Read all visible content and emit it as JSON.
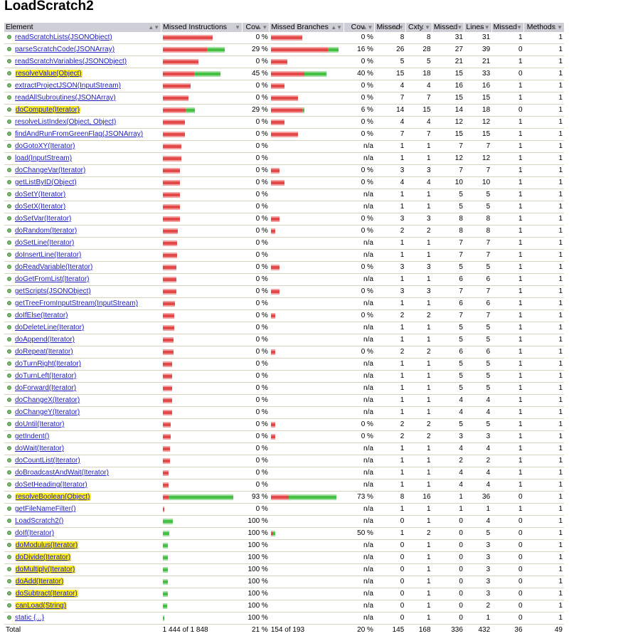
{
  "title": "LoadScratch2",
  "columns": [
    "Element",
    "Missed Instructions",
    "Cov.",
    "Missed Branches",
    "Cov.",
    "Missed",
    "Cxty",
    "Missed",
    "Lines",
    "Missed",
    "Methods"
  ],
  "colors": {
    "missed_bar": "#e44949",
    "covered_bar": "#45c045",
    "highlight": "#ffee22",
    "link": "#2020c0",
    "header_bg": "#ceced6"
  },
  "rows": [
    {
      "name": "readScratchLists(JSONObject)",
      "hl": false,
      "ir": 70,
      "ig": 0,
      "icov": "0 %",
      "br": 44,
      "bg": 0,
      "bcov": "0 %",
      "cxm": "8",
      "cx": "8",
      "lm": "31",
      "ln": "31",
      "mm": "1",
      "mt": "1"
    },
    {
      "name": "parseScratchCode(JSONArray)",
      "hl": false,
      "ir": 62,
      "ig": 25,
      "icov": "29 %",
      "br": 80,
      "bg": 15,
      "bcov": "16 %",
      "cxm": "26",
      "cx": "28",
      "lm": "27",
      "ln": "39",
      "mm": "0",
      "mt": "1"
    },
    {
      "name": "readScratchVariables(JSONObject)",
      "hl": false,
      "ir": 50,
      "ig": 0,
      "icov": "0 %",
      "br": 23,
      "bg": 0,
      "bcov": "0 %",
      "cxm": "5",
      "cx": "5",
      "lm": "21",
      "ln": "21",
      "mm": "1",
      "mt": "1"
    },
    {
      "name": "resolveValue(Object)",
      "hl": true,
      "ir": 44,
      "ig": 37,
      "icov": "45 %",
      "br": 47,
      "bg": 31,
      "bcov": "40 %",
      "cxm": "15",
      "cx": "18",
      "lm": "15",
      "ln": "33",
      "mm": "0",
      "mt": "1"
    },
    {
      "name": "extractProjectJSON(InputStream)",
      "hl": false,
      "ir": 39,
      "ig": 0,
      "icov": "0 %",
      "br": 19,
      "bg": 0,
      "bcov": "0 %",
      "cxm": "4",
      "cx": "4",
      "lm": "16",
      "ln": "16",
      "mm": "1",
      "mt": "1"
    },
    {
      "name": "readAllSubroutines(JSONArray)",
      "hl": false,
      "ir": 36,
      "ig": 0,
      "icov": "0 %",
      "br": 38,
      "bg": 0,
      "bcov": "0 %",
      "cxm": "7",
      "cx": "7",
      "lm": "15",
      "ln": "15",
      "mm": "1",
      "mt": "1"
    },
    {
      "name": "doCompute(Iterator)",
      "hl": true,
      "ir": 32,
      "ig": 13,
      "icov": "29 %",
      "br": 44,
      "bg": 3,
      "bcov": "6 %",
      "cxm": "14",
      "cx": "15",
      "lm": "14",
      "ln": "18",
      "mm": "0",
      "mt": "1"
    },
    {
      "name": "resolveListIndex(Object, Object)",
      "hl": false,
      "ir": 31,
      "ig": 0,
      "icov": "0 %",
      "br": 19,
      "bg": 0,
      "bcov": "0 %",
      "cxm": "4",
      "cx": "4",
      "lm": "12",
      "ln": "12",
      "mm": "1",
      "mt": "1"
    },
    {
      "name": "findAndRunFromGreenFlag(JSONArray)",
      "hl": false,
      "ir": 31,
      "ig": 0,
      "icov": "0 %",
      "br": 38,
      "bg": 0,
      "bcov": "0 %",
      "cxm": "7",
      "cx": "7",
      "lm": "15",
      "ln": "15",
      "mm": "1",
      "mt": "1"
    },
    {
      "name": "doGotoXY(Iterator)",
      "hl": false,
      "ir": 26,
      "ig": 0,
      "icov": "0 %",
      "br": 0,
      "bg": 0,
      "bcov": "n/a",
      "cxm": "1",
      "cx": "1",
      "lm": "7",
      "ln": "7",
      "mm": "1",
      "mt": "1"
    },
    {
      "name": "load(InputStream)",
      "hl": false,
      "ir": 26,
      "ig": 0,
      "icov": "0 %",
      "br": 0,
      "bg": 0,
      "bcov": "n/a",
      "cxm": "1",
      "cx": "1",
      "lm": "12",
      "ln": "12",
      "mm": "1",
      "mt": "1"
    },
    {
      "name": "doChangeVar(Iterator)",
      "hl": false,
      "ir": 24,
      "ig": 0,
      "icov": "0 %",
      "br": 12,
      "bg": 0,
      "bcov": "0 %",
      "cxm": "3",
      "cx": "3",
      "lm": "7",
      "ln": "7",
      "mm": "1",
      "mt": "1"
    },
    {
      "name": "getListByID(Object)",
      "hl": false,
      "ir": 24,
      "ig": 0,
      "icov": "0 %",
      "br": 19,
      "bg": 0,
      "bcov": "0 %",
      "cxm": "4",
      "cx": "4",
      "lm": "10",
      "ln": "10",
      "mm": "1",
      "mt": "1"
    },
    {
      "name": "doSetY(Iterator)",
      "hl": false,
      "ir": 24,
      "ig": 0,
      "icov": "0 %",
      "br": 0,
      "bg": 0,
      "bcov": "n/a",
      "cxm": "1",
      "cx": "1",
      "lm": "5",
      "ln": "5",
      "mm": "1",
      "mt": "1"
    },
    {
      "name": "doSetX(Iterator)",
      "hl": false,
      "ir": 24,
      "ig": 0,
      "icov": "0 %",
      "br": 0,
      "bg": 0,
      "bcov": "n/a",
      "cxm": "1",
      "cx": "1",
      "lm": "5",
      "ln": "5",
      "mm": "1",
      "mt": "1"
    },
    {
      "name": "doSetVar(Iterator)",
      "hl": false,
      "ir": 24,
      "ig": 0,
      "icov": "0 %",
      "br": 12,
      "bg": 0,
      "bcov": "0 %",
      "cxm": "3",
      "cx": "3",
      "lm": "8",
      "ln": "8",
      "mm": "1",
      "mt": "1"
    },
    {
      "name": "doRandom(Iterator)",
      "hl": false,
      "ir": 21,
      "ig": 0,
      "icov": "0 %",
      "br": 6,
      "bg": 0,
      "bcov": "0 %",
      "cxm": "2",
      "cx": "2",
      "lm": "8",
      "ln": "8",
      "mm": "1",
      "mt": "1"
    },
    {
      "name": "doSetLine(Iterator)",
      "hl": false,
      "ir": 20,
      "ig": 0,
      "icov": "0 %",
      "br": 0,
      "bg": 0,
      "bcov": "n/a",
      "cxm": "1",
      "cx": "1",
      "lm": "7",
      "ln": "7",
      "mm": "1",
      "mt": "1"
    },
    {
      "name": "doInsertLine(Iterator)",
      "hl": false,
      "ir": 20,
      "ig": 0,
      "icov": "0 %",
      "br": 0,
      "bg": 0,
      "bcov": "n/a",
      "cxm": "1",
      "cx": "1",
      "lm": "7",
      "ln": "7",
      "mm": "1",
      "mt": "1"
    },
    {
      "name": "doReadVariable(Iterator)",
      "hl": false,
      "ir": 19,
      "ig": 0,
      "icov": "0 %",
      "br": 12,
      "bg": 0,
      "bcov": "0 %",
      "cxm": "3",
      "cx": "3",
      "lm": "5",
      "ln": "5",
      "mm": "1",
      "mt": "1"
    },
    {
      "name": "doGetFromList(Iterator)",
      "hl": false,
      "ir": 19,
      "ig": 0,
      "icov": "0 %",
      "br": 0,
      "bg": 0,
      "bcov": "n/a",
      "cxm": "1",
      "cx": "1",
      "lm": "6",
      "ln": "6",
      "mm": "1",
      "mt": "1"
    },
    {
      "name": "getScripts(JSONObject)",
      "hl": false,
      "ir": 19,
      "ig": 0,
      "icov": "0 %",
      "br": 12,
      "bg": 0,
      "bcov": "0 %",
      "cxm": "3",
      "cx": "3",
      "lm": "7",
      "ln": "7",
      "mm": "1",
      "mt": "1"
    },
    {
      "name": "getTreeFromInputStream(InputStream)",
      "hl": false,
      "ir": 17,
      "ig": 0,
      "icov": "0 %",
      "br": 0,
      "bg": 0,
      "bcov": "n/a",
      "cxm": "1",
      "cx": "1",
      "lm": "6",
      "ln": "6",
      "mm": "1",
      "mt": "1"
    },
    {
      "name": "doIfElse(Iterator)",
      "hl": false,
      "ir": 16,
      "ig": 0,
      "icov": "0 %",
      "br": 6,
      "bg": 0,
      "bcov": "0 %",
      "cxm": "2",
      "cx": "2",
      "lm": "7",
      "ln": "7",
      "mm": "1",
      "mt": "1"
    },
    {
      "name": "doDeleteLine(Iterator)",
      "hl": false,
      "ir": 16,
      "ig": 0,
      "icov": "0 %",
      "br": 0,
      "bg": 0,
      "bcov": "n/a",
      "cxm": "1",
      "cx": "1",
      "lm": "5",
      "ln": "5",
      "mm": "1",
      "mt": "1"
    },
    {
      "name": "doAppend(Iterator)",
      "hl": false,
      "ir": 15,
      "ig": 0,
      "icov": "0 %",
      "br": 0,
      "bg": 0,
      "bcov": "n/a",
      "cxm": "1",
      "cx": "1",
      "lm": "5",
      "ln": "5",
      "mm": "1",
      "mt": "1"
    },
    {
      "name": "doRepeat(Iterator)",
      "hl": false,
      "ir": 15,
      "ig": 0,
      "icov": "0 %",
      "br": 6,
      "bg": 0,
      "bcov": "0 %",
      "cxm": "2",
      "cx": "2",
      "lm": "6",
      "ln": "6",
      "mm": "1",
      "mt": "1"
    },
    {
      "name": "doTurnRight(Iterator)",
      "hl": false,
      "ir": 13,
      "ig": 0,
      "icov": "0 %",
      "br": 0,
      "bg": 0,
      "bcov": "n/a",
      "cxm": "1",
      "cx": "1",
      "lm": "5",
      "ln": "5",
      "mm": "1",
      "mt": "1"
    },
    {
      "name": "doTurnLeft(Iterator)",
      "hl": false,
      "ir": 13,
      "ig": 0,
      "icov": "0 %",
      "br": 0,
      "bg": 0,
      "bcov": "n/a",
      "cxm": "1",
      "cx": "1",
      "lm": "5",
      "ln": "5",
      "mm": "1",
      "mt": "1"
    },
    {
      "name": "doForward(Iterator)",
      "hl": false,
      "ir": 13,
      "ig": 0,
      "icov": "0 %",
      "br": 0,
      "bg": 0,
      "bcov": "n/a",
      "cxm": "1",
      "cx": "1",
      "lm": "5",
      "ln": "5",
      "mm": "1",
      "mt": "1"
    },
    {
      "name": "doChangeX(Iterator)",
      "hl": false,
      "ir": 13,
      "ig": 0,
      "icov": "0 %",
      "br": 0,
      "bg": 0,
      "bcov": "n/a",
      "cxm": "1",
      "cx": "1",
      "lm": "4",
      "ln": "4",
      "mm": "1",
      "mt": "1"
    },
    {
      "name": "doChangeY(Iterator)",
      "hl": false,
      "ir": 13,
      "ig": 0,
      "icov": "0 %",
      "br": 0,
      "bg": 0,
      "bcov": "n/a",
      "cxm": "1",
      "cx": "1",
      "lm": "4",
      "ln": "4",
      "mm": "1",
      "mt": "1"
    },
    {
      "name": "doUntil(Iterator)",
      "hl": false,
      "ir": 11,
      "ig": 0,
      "icov": "0 %",
      "br": 6,
      "bg": 0,
      "bcov": "0 %",
      "cxm": "2",
      "cx": "2",
      "lm": "5",
      "ln": "5",
      "mm": "1",
      "mt": "1"
    },
    {
      "name": "getIndent()",
      "hl": false,
      "ir": 11,
      "ig": 0,
      "icov": "0 %",
      "br": 6,
      "bg": 0,
      "bcov": "0 %",
      "cxm": "2",
      "cx": "2",
      "lm": "3",
      "ln": "3",
      "mm": "1",
      "mt": "1"
    },
    {
      "name": "doWait(Iterator)",
      "hl": false,
      "ir": 10,
      "ig": 0,
      "icov": "0 %",
      "br": 0,
      "bg": 0,
      "bcov": "n/a",
      "cxm": "1",
      "cx": "1",
      "lm": "4",
      "ln": "4",
      "mm": "1",
      "mt": "1"
    },
    {
      "name": "doCountList(Iterator)",
      "hl": false,
      "ir": 10,
      "ig": 0,
      "icov": "0 %",
      "br": 0,
      "bg": 0,
      "bcov": "n/a",
      "cxm": "1",
      "cx": "1",
      "lm": "2",
      "ln": "2",
      "mm": "1",
      "mt": "1"
    },
    {
      "name": "doBroadcastAndWait(Iterator)",
      "hl": false,
      "ir": 8,
      "ig": 0,
      "icov": "0 %",
      "br": 0,
      "bg": 0,
      "bcov": "n/a",
      "cxm": "1",
      "cx": "1",
      "lm": "4",
      "ln": "4",
      "mm": "1",
      "mt": "1"
    },
    {
      "name": "doSetHeading(Iterator)",
      "hl": false,
      "ir": 8,
      "ig": 0,
      "icov": "0 %",
      "br": 0,
      "bg": 0,
      "bcov": "n/a",
      "cxm": "1",
      "cx": "1",
      "lm": "4",
      "ln": "4",
      "mm": "1",
      "mt": "1"
    },
    {
      "name": "resolveBoolean(Object)",
      "hl": true,
      "ir": 8,
      "ig": 91,
      "icov": "93 %",
      "br": 25,
      "bg": 67,
      "bcov": "73 %",
      "cxm": "8",
      "cx": "16",
      "lm": "1",
      "ln": "36",
      "mm": "0",
      "mt": "1"
    },
    {
      "name": "getFileNameFilter()",
      "hl": false,
      "ir": 2,
      "ig": 0,
      "icov": "0 %",
      "br": 0,
      "bg": 0,
      "bcov": "n/a",
      "cxm": "1",
      "cx": "1",
      "lm": "1",
      "ln": "1",
      "mm": "1",
      "mt": "1"
    },
    {
      "name": "LoadScratch2()",
      "hl": false,
      "ir": 0,
      "ig": 14,
      "icov": "100 %",
      "br": 0,
      "bg": 0,
      "bcov": "n/a",
      "cxm": "0",
      "cx": "1",
      "lm": "0",
      "ln": "4",
      "mm": "0",
      "mt": "1"
    },
    {
      "name": "doIf(Iterator)",
      "hl": false,
      "ir": 0,
      "ig": 9,
      "icov": "100 %",
      "br": 3,
      "bg": 3,
      "bcov": "50 %",
      "cxm": "1",
      "cx": "2",
      "lm": "0",
      "ln": "5",
      "mm": "0",
      "mt": "1"
    },
    {
      "name": "doModulus(Iterator)",
      "hl": true,
      "ir": 0,
      "ig": 7,
      "icov": "100 %",
      "br": 0,
      "bg": 0,
      "bcov": "n/a",
      "cxm": "0",
      "cx": "1",
      "lm": "0",
      "ln": "3",
      "mm": "0",
      "mt": "1"
    },
    {
      "name": "doDivide(Iterator)",
      "hl": true,
      "ir": 0,
      "ig": 7,
      "icov": "100 %",
      "br": 0,
      "bg": 0,
      "bcov": "n/a",
      "cxm": "0",
      "cx": "1",
      "lm": "0",
      "ln": "3",
      "mm": "0",
      "mt": "1"
    },
    {
      "name": "doMultiply(Iterator)",
      "hl": true,
      "ir": 0,
      "ig": 7,
      "icov": "100 %",
      "br": 0,
      "bg": 0,
      "bcov": "n/a",
      "cxm": "0",
      "cx": "1",
      "lm": "0",
      "ln": "3",
      "mm": "0",
      "mt": "1"
    },
    {
      "name": "doAdd(Iterator)",
      "hl": true,
      "ir": 0,
      "ig": 7,
      "icov": "100 %",
      "br": 0,
      "bg": 0,
      "bcov": "n/a",
      "cxm": "0",
      "cx": "1",
      "lm": "0",
      "ln": "3",
      "mm": "0",
      "mt": "1"
    },
    {
      "name": "doSubtract(Iterator)",
      "hl": true,
      "ir": 0,
      "ig": 7,
      "icov": "100 %",
      "br": 0,
      "bg": 0,
      "bcov": "n/a",
      "cxm": "0",
      "cx": "1",
      "lm": "0",
      "ln": "3",
      "mm": "0",
      "mt": "1"
    },
    {
      "name": "canLoad(String)",
      "hl": true,
      "ir": 0,
      "ig": 6,
      "icov": "100 %",
      "br": 0,
      "bg": 0,
      "bcov": "n/a",
      "cxm": "0",
      "cx": "1",
      "lm": "0",
      "ln": "2",
      "mm": "0",
      "mt": "1"
    },
    {
      "name": "static {...}",
      "hl": false,
      "ir": 0,
      "ig": 2,
      "icov": "100 %",
      "br": 0,
      "bg": 0,
      "bcov": "n/a",
      "cxm": "0",
      "cx": "1",
      "lm": "0",
      "ln": "1",
      "mm": "0",
      "mt": "1"
    }
  ],
  "total": {
    "label": "Total",
    "instructions": "1 444 of 1 848",
    "icov": "21 %",
    "branches": "154 of 193",
    "bcov": "20 %",
    "cxm": "145",
    "cx": "168",
    "lm": "336",
    "ln": "432",
    "mm": "36",
    "mt": "49"
  }
}
